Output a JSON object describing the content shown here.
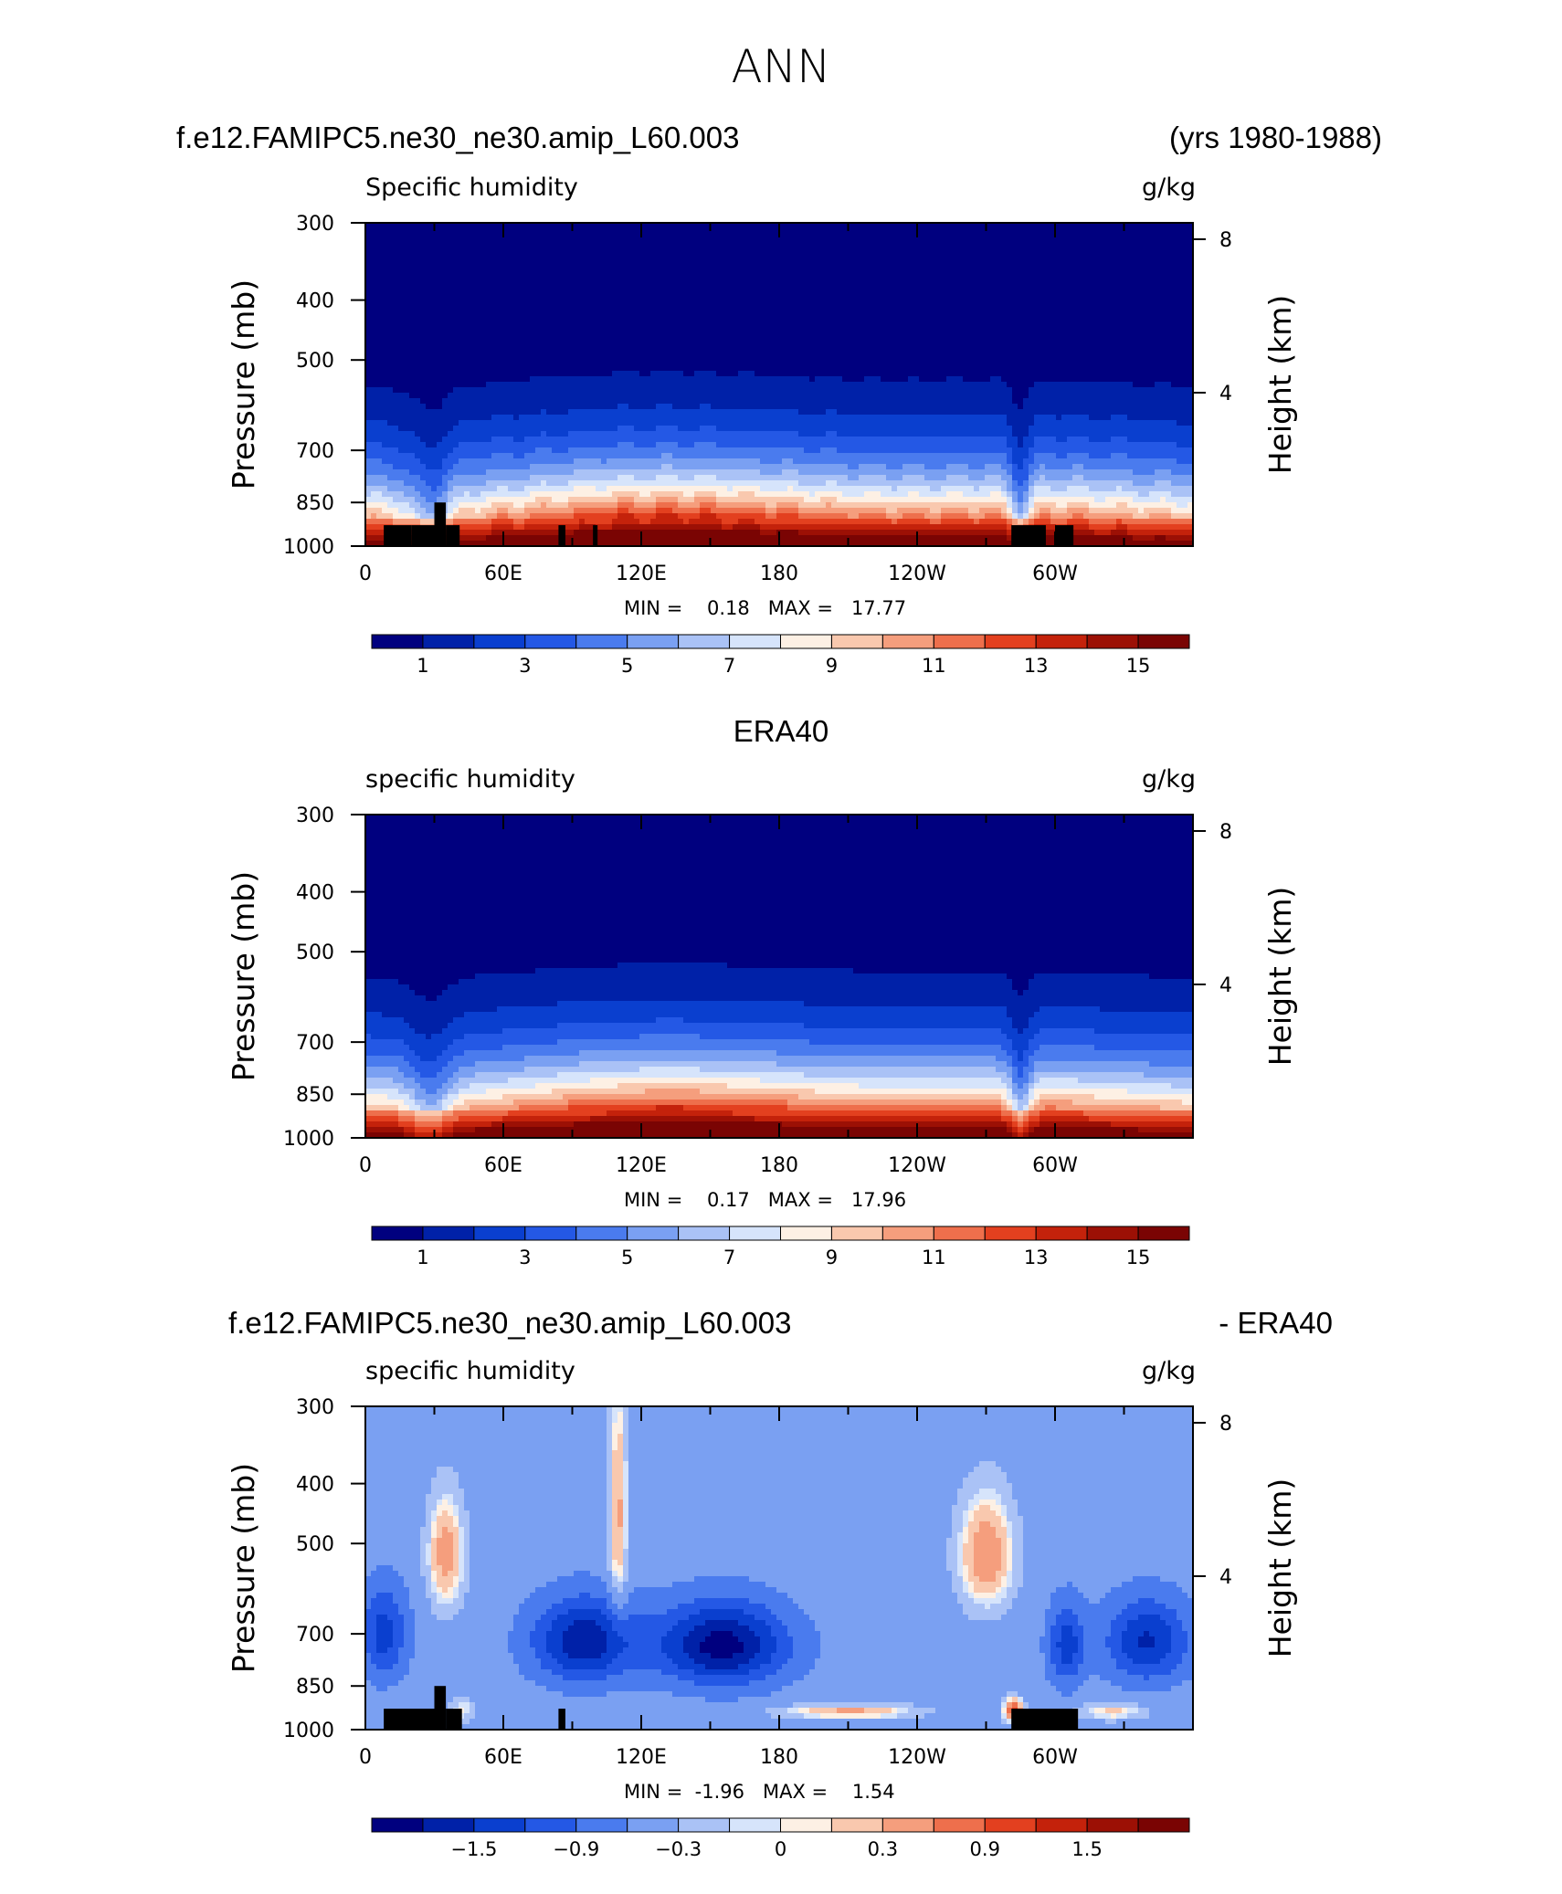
{
  "figure_title": "ANN",
  "panels": [
    {
      "header_left": "f.e12.FAMIPC5.ne30_ne30.amip_L60.003",
      "header_right": "(yrs 1980-1988)",
      "header_center": "",
      "variable": "Specific humidity",
      "units": "g/kg",
      "minmax": "MIN =    0.18   MAX =   17.77"
    },
    {
      "header_left": "",
      "header_right": "",
      "header_center": "ERA40",
      "variable": "specific humidity",
      "units": "g/kg",
      "minmax": "MIN =    0.17   MAX =   17.96"
    },
    {
      "header_left": "f.e12.FAMIPC5.ne30_ne30.amip_L60.003",
      "header_right": "- ERA40",
      "header_center": "",
      "variable": "specific humidity",
      "units": "g/kg",
      "minmax": "MIN =  -1.96   MAX =    1.54"
    }
  ],
  "chart_data": [
    {
      "type": "heatmap",
      "title": "Specific humidity",
      "units": "g/kg",
      "ylabel": "Pressure (mb)",
      "ylabel_right": "Height (km)",
      "x_ticks": [
        "0",
        "60E",
        "120E",
        "180",
        "120W",
        "60W"
      ],
      "y_ticks": [
        "300",
        "400",
        "500",
        "700",
        "850",
        "1000"
      ],
      "y_ticks_right": [
        "8",
        "4"
      ],
      "ylim": [
        1000,
        300
      ],
      "y_scale": "log-pressure",
      "min": 0.18,
      "max": 17.77,
      "colorbar_labels": [
        "1",
        "3",
        "5",
        "7",
        "9",
        "11",
        "13",
        "15"
      ],
      "colors": [
        "#00007f",
        "#0021a8",
        "#0a3fcf",
        "#2458e5",
        "#4a7bee",
        "#7aa0f2",
        "#aac2f6",
        "#d6e4fb",
        "#fdf0e4",
        "#f9c8ae",
        "#f59e7d",
        "#ee6f4c",
        "#e3401f",
        "#c4220b",
        "#9c1005",
        "#7a0403"
      ]
    },
    {
      "type": "heatmap",
      "title": "specific humidity",
      "units": "g/kg",
      "ylabel": "Pressure (mb)",
      "ylabel_right": "Height (km)",
      "x_ticks": [
        "0",
        "60E",
        "120E",
        "180",
        "120W",
        "60W"
      ],
      "y_ticks": [
        "300",
        "400",
        "500",
        "700",
        "850",
        "1000"
      ],
      "y_ticks_right": [
        "8",
        "4"
      ],
      "ylim": [
        1000,
        300
      ],
      "y_scale": "log-pressure",
      "min": 0.17,
      "max": 17.96,
      "colorbar_labels": [
        "1",
        "3",
        "5",
        "7",
        "9",
        "11",
        "13",
        "15"
      ],
      "colors": [
        "#00007f",
        "#0021a8",
        "#0a3fcf",
        "#2458e5",
        "#4a7bee",
        "#7aa0f2",
        "#aac2f6",
        "#d6e4fb",
        "#fdf0e4",
        "#f9c8ae",
        "#f59e7d",
        "#ee6f4c",
        "#e3401f",
        "#c4220b",
        "#9c1005",
        "#7a0403"
      ]
    },
    {
      "type": "heatmap",
      "title": "specific humidity",
      "units": "g/kg",
      "ylabel": "Pressure (mb)",
      "ylabel_right": "Height (km)",
      "x_ticks": [
        "0",
        "60E",
        "120E",
        "180",
        "120W",
        "60W"
      ],
      "y_ticks": [
        "300",
        "400",
        "500",
        "700",
        "850",
        "1000"
      ],
      "y_ticks_right": [
        "8",
        "4"
      ],
      "ylim": [
        1000,
        300
      ],
      "y_scale": "log-pressure",
      "min": -1.96,
      "max": 1.54,
      "colorbar_labels": [
        "-1.5",
        "-0.9",
        "-0.3",
        "0",
        "0.3",
        "0.9",
        "1.5"
      ],
      "colors": [
        "#00007f",
        "#0021a8",
        "#0a3fcf",
        "#2458e5",
        "#4a7bee",
        "#7aa0f2",
        "#aac2f6",
        "#d6e4fb",
        "#fdf0e4",
        "#f9c8ae",
        "#f59e7d",
        "#ee6f4c",
        "#e3401f",
        "#c4220b",
        "#9c1005",
        "#7a0403"
      ]
    }
  ]
}
